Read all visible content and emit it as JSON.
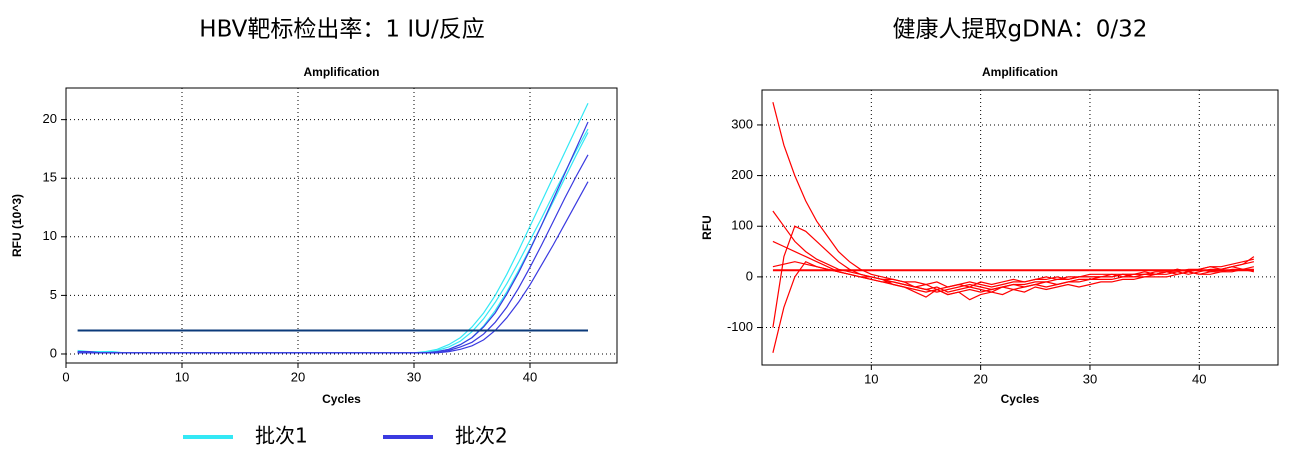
{
  "chart_data": [
    {
      "type": "line",
      "heading": "HBV靶标检出率：1 IU/反应",
      "title": "Amplification",
      "x_label": "Cycles",
      "y_label": "RFU (10^3)",
      "xlim": [
        0,
        47.5
      ],
      "ylim": [
        -0.77,
        22.7
      ],
      "xticks": [
        0,
        10,
        20,
        30,
        40
      ],
      "yticks": [
        0,
        5,
        10,
        15,
        20
      ],
      "grid": true,
      "threshold": 2,
      "threshold_color": "#0b3a7a",
      "legend": "bottom",
      "x": [
        1,
        2,
        3,
        4,
        5,
        6,
        7,
        8,
        9,
        10,
        11,
        12,
        13,
        14,
        15,
        16,
        17,
        18,
        19,
        20,
        21,
        22,
        23,
        24,
        25,
        26,
        27,
        28,
        29,
        30,
        31,
        32,
        33,
        34,
        35,
        36,
        37,
        38,
        39,
        40,
        41,
        42,
        43,
        44,
        45
      ],
      "series": [
        {
          "name": "批次1",
          "color": "#33e8f5",
          "curves": [
            [
              0.3,
              0.2,
              0.2,
              0.2,
              0.1,
              0.1,
              0.1,
              0.1,
              0.1,
              0.1,
              0.1,
              0.1,
              0.1,
              0.1,
              0.1,
              0.1,
              0.1,
              0.1,
              0.1,
              0.1,
              0.1,
              0.1,
              0.1,
              0.1,
              0.1,
              0.1,
              0.1,
              0.1,
              0.1,
              0.1,
              0.2,
              0.4,
              0.8,
              1.4,
              2.3,
              3.5,
              5.0,
              6.8,
              8.8,
              10.9,
              13.0,
              15.1,
              17.2,
              19.3,
              21.4
            ],
            [
              0.2,
              0.2,
              0.1,
              0.1,
              0.1,
              0.1,
              0.1,
              0.1,
              0.1,
              0.1,
              0.1,
              0.1,
              0.1,
              0.1,
              0.1,
              0.1,
              0.1,
              0.1,
              0.1,
              0.1,
              0.1,
              0.1,
              0.1,
              0.1,
              0.1,
              0.1,
              0.1,
              0.1,
              0.1,
              0.1,
              0.1,
              0.3,
              0.6,
              1.1,
              1.9,
              3.0,
              4.4,
              6.0,
              7.8,
              9.7,
              11.6,
              13.6,
              15.5,
              17.4,
              19.2
            ],
            [
              0.1,
              0.2,
              0.1,
              0.1,
              0.1,
              0.1,
              0.1,
              0.1,
              0.1,
              0.1,
              0.1,
              0.1,
              0.1,
              0.1,
              0.1,
              0.1,
              0.1,
              0.1,
              0.1,
              0.1,
              0.1,
              0.1,
              0.1,
              0.1,
              0.1,
              0.1,
              0.1,
              0.1,
              0.1,
              0.1,
              0.1,
              0.2,
              0.4,
              0.8,
              1.4,
              2.4,
              3.7,
              5.3,
              7.1,
              9.0,
              11.0,
              13.0,
              15.0,
              17.0,
              18.9
            ]
          ]
        },
        {
          "name": "批次2",
          "color": "#3a3ae0",
          "curves": [
            [
              0.2,
              0.2,
              0.1,
              0.1,
              0.1,
              0.1,
              0.1,
              0.1,
              0.1,
              0.1,
              0.1,
              0.1,
              0.1,
              0.1,
              0.1,
              0.1,
              0.1,
              0.1,
              0.1,
              0.1,
              0.1,
              0.1,
              0.1,
              0.1,
              0.1,
              0.1,
              0.1,
              0.1,
              0.1,
              0.1,
              0.1,
              0.2,
              0.4,
              0.8,
              1.4,
              2.3,
              3.5,
              5.1,
              6.9,
              8.9,
              11.0,
              13.2,
              15.4,
              17.6,
              19.8
            ],
            [
              0.1,
              0.1,
              0.1,
              0.1,
              0.1,
              0.1,
              0.1,
              0.1,
              0.1,
              0.1,
              0.1,
              0.1,
              0.1,
              0.1,
              0.1,
              0.1,
              0.1,
              0.1,
              0.1,
              0.1,
              0.1,
              0.1,
              0.1,
              0.1,
              0.1,
              0.1,
              0.1,
              0.1,
              0.1,
              0.1,
              0.1,
              0.1,
              0.3,
              0.6,
              1.0,
              1.7,
              2.7,
              4.0,
              5.6,
              7.4,
              9.3,
              11.3,
              13.3,
              15.2,
              17.0
            ],
            [
              0.1,
              0.1,
              0.1,
              0.1,
              0.1,
              0.1,
              0.1,
              0.1,
              0.1,
              0.1,
              0.1,
              0.1,
              0.1,
              0.1,
              0.1,
              0.1,
              0.1,
              0.1,
              0.1,
              0.1,
              0.1,
              0.1,
              0.1,
              0.1,
              0.1,
              0.1,
              0.1,
              0.1,
              0.1,
              0.1,
              0.1,
              0.1,
              0.2,
              0.4,
              0.7,
              1.2,
              2.0,
              3.1,
              4.4,
              5.9,
              7.6,
              9.3,
              11.1,
              12.9,
              14.7
            ]
          ]
        }
      ]
    },
    {
      "type": "line",
      "heading": "健康人提取gDNA：0/32",
      "title": "Amplification",
      "x_label": "Cycles",
      "y_label": "RFU",
      "xlim": [
        0,
        47.2
      ],
      "ylim": [
        -174,
        369
      ],
      "xticks": [
        10,
        20,
        30,
        40
      ],
      "yticks": [
        -100,
        0,
        100,
        200,
        300
      ],
      "grid": true,
      "threshold": 13,
      "threshold_color": "#ff0000",
      "x": [
        1,
        2,
        3,
        4,
        5,
        6,
        7,
        8,
        9,
        10,
        11,
        12,
        13,
        14,
        15,
        16,
        17,
        18,
        19,
        20,
        21,
        22,
        23,
        24,
        25,
        26,
        27,
        28,
        29,
        30,
        31,
        32,
        33,
        34,
        35,
        36,
        37,
        38,
        39,
        40,
        41,
        42,
        43,
        44,
        45
      ],
      "series": [
        {
          "color": "#ff0000",
          "curves": [
            [
              345,
              260,
              200,
              150,
              110,
              80,
              50,
              30,
              15,
              5,
              0,
              -5,
              -10,
              -20,
              -25,
              -20,
              -30,
              -25,
              -20,
              -25,
              -30,
              -20,
              -25,
              -20,
              -15,
              -20,
              -15,
              -10,
              -10,
              -5,
              -5,
              -5,
              0,
              0,
              0,
              5,
              5,
              10,
              5,
              10,
              15,
              15,
              20,
              25,
              30
            ],
            [
              -150,
              -60,
              0,
              30,
              20,
              15,
              10,
              5,
              0,
              -5,
              -10,
              -15,
              -20,
              -25,
              -30,
              -25,
              -35,
              -30,
              -25,
              -30,
              -25,
              -20,
              -15,
              -20,
              -15,
              -10,
              -15,
              -10,
              -5,
              -5,
              0,
              0,
              5,
              0,
              5,
              5,
              10,
              5,
              10,
              15,
              20,
              15,
              20,
              25,
              40
            ],
            [
              -100,
              40,
              100,
              90,
              70,
              50,
              30,
              15,
              5,
              0,
              -5,
              -10,
              -15,
              -20,
              -15,
              -25,
              -20,
              -15,
              -20,
              -10,
              -15,
              -10,
              -5,
              -10,
              -5,
              0,
              -5,
              0,
              0,
              5,
              5,
              5,
              0,
              5,
              10,
              5,
              10,
              15,
              10,
              15,
              20,
              20,
              25,
              30,
              35
            ],
            [
              130,
              100,
              70,
              50,
              35,
              25,
              15,
              10,
              5,
              0,
              -5,
              -15,
              -20,
              -30,
              -40,
              -25,
              -35,
              -30,
              -45,
              -35,
              -30,
              -35,
              -25,
              -30,
              -20,
              -25,
              -20,
              -15,
              -20,
              -15,
              -10,
              -10,
              -5,
              -5,
              0,
              0,
              0,
              5,
              10,
              5,
              10,
              10,
              15,
              15,
              20
            ],
            [
              70,
              60,
              50,
              40,
              30,
              20,
              10,
              5,
              0,
              -5,
              -10,
              -10,
              -15,
              -20,
              -25,
              -30,
              -25,
              -20,
              -15,
              -20,
              -25,
              -20,
              -15,
              -15,
              -10,
              -10,
              -5,
              -5,
              0,
              0,
              0,
              5,
              5,
              5,
              5,
              10,
              10,
              10,
              15,
              15,
              10,
              15,
              20,
              15,
              10
            ],
            [
              20,
              25,
              30,
              25,
              20,
              15,
              10,
              5,
              0,
              0,
              -5,
              -5,
              -10,
              -10,
              -15,
              -10,
              -20,
              -15,
              -10,
              -15,
              -20,
              -15,
              -10,
              -10,
              -5,
              -5,
              0,
              -5,
              0,
              0,
              0,
              0,
              5,
              5,
              5,
              5,
              10,
              15,
              10,
              5,
              5,
              10,
              10,
              15,
              15
            ]
          ]
        }
      ]
    }
  ]
}
